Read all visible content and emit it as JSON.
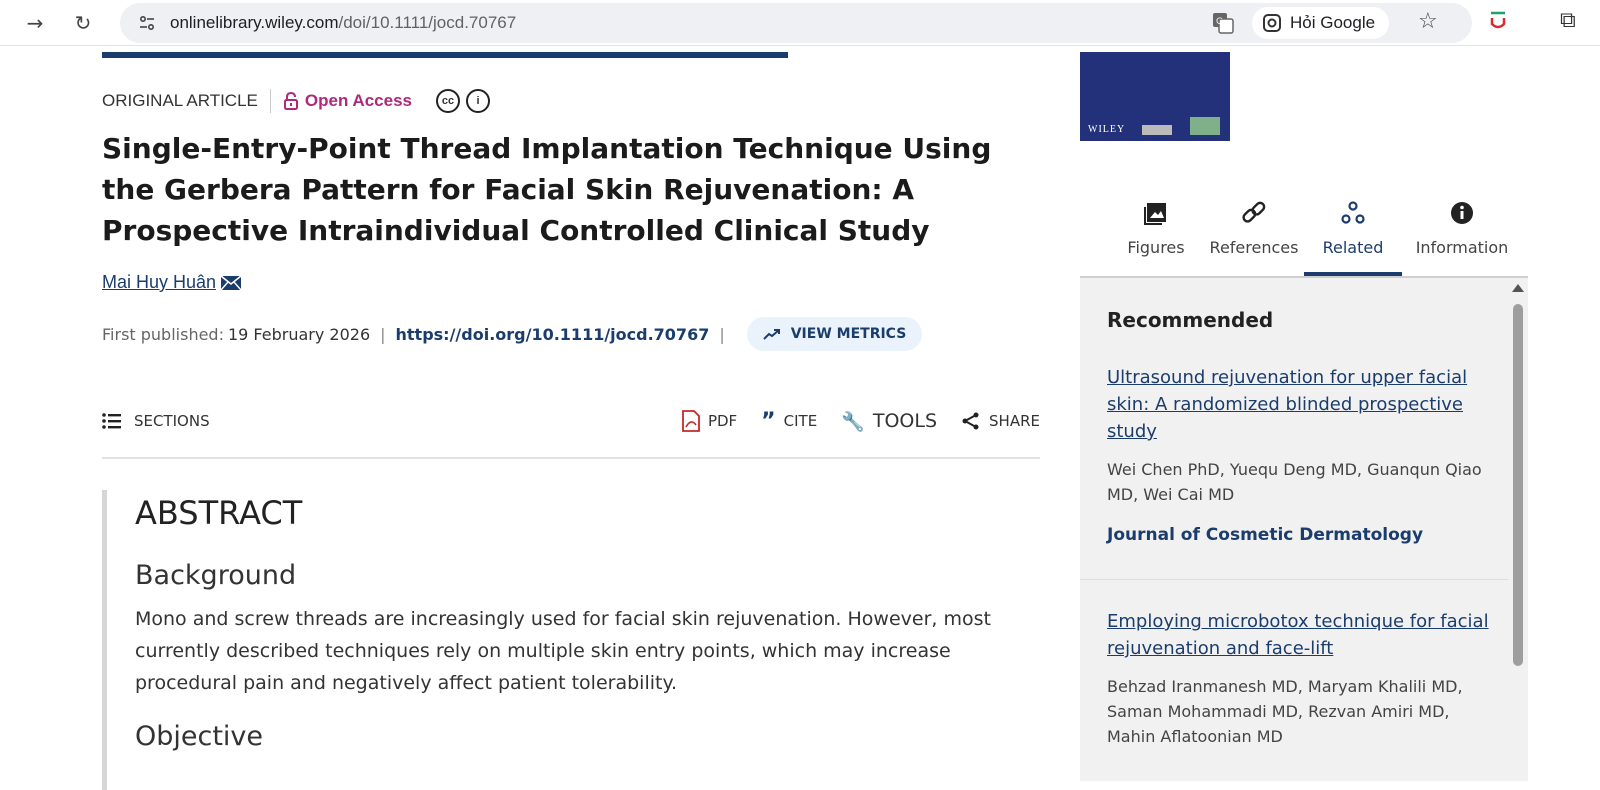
{
  "browser": {
    "url_host": "onlinelibrary.wiley.com",
    "url_path": "/doi/10.1111/jocd.70767",
    "hoi_google": "Hỏi Google"
  },
  "article": {
    "type": "ORIGINAL ARTICLE",
    "open_access": "Open Access",
    "title": "Single-Entry-Point Thread Implantation Technique Using the Gerbera Pattern for Facial Skin Rejuvenation: A Prospective Intraindividual Controlled Clinical Study",
    "author": "Mai Huy Huân",
    "first_published_label": "First published:",
    "first_published_date": "19 February 2026",
    "doi": "https://doi.org/10.1111/jocd.70767",
    "view_metrics": "VIEW METRICS"
  },
  "toolbar": {
    "sections": "SECTIONS",
    "pdf": "PDF",
    "cite": "CITE",
    "tools": "TOOLS",
    "share": "SHARE"
  },
  "abstract": {
    "heading": "ABSTRACT",
    "background_heading": "Background",
    "background_text": "Mono and screw threads are increasingly used for facial skin rejuvenation. However, most currently described techniques rely on multiple skin entry points, which may increase procedural pain and negatively affect patient tolerability.",
    "objective_heading": "Objective"
  },
  "cover": {
    "publisher": "WILEY"
  },
  "tabs": [
    {
      "label": "Figures",
      "icon": "image-icon"
    },
    {
      "label": "References",
      "icon": "link-icon"
    },
    {
      "label": "Related",
      "icon": "related-icon",
      "active": true
    },
    {
      "label": "Information",
      "icon": "info-icon"
    }
  ],
  "recommended": {
    "heading": "Recommended",
    "items": [
      {
        "title": "Ultrasound rejuvenation for upper facial skin: A randomized blinded prospective study",
        "authors": "Wei Chen PhD, Yuequ Deng MD, Guanqun Qiao MD, Wei Cai MD",
        "journal": "Journal of Cosmetic Dermatology"
      },
      {
        "title": "Employing microbotox technique for facial rejuvenation and face-lift",
        "authors": "Behzad Iranmanesh MD, Maryam Khalili MD, Saman Mohammadi MD, Rezvan Amiri MD, Mahin Aflatoonian MD"
      }
    ]
  },
  "colors": {
    "brand_blue": "#1b3d6d",
    "open_access": "#b0287a"
  }
}
